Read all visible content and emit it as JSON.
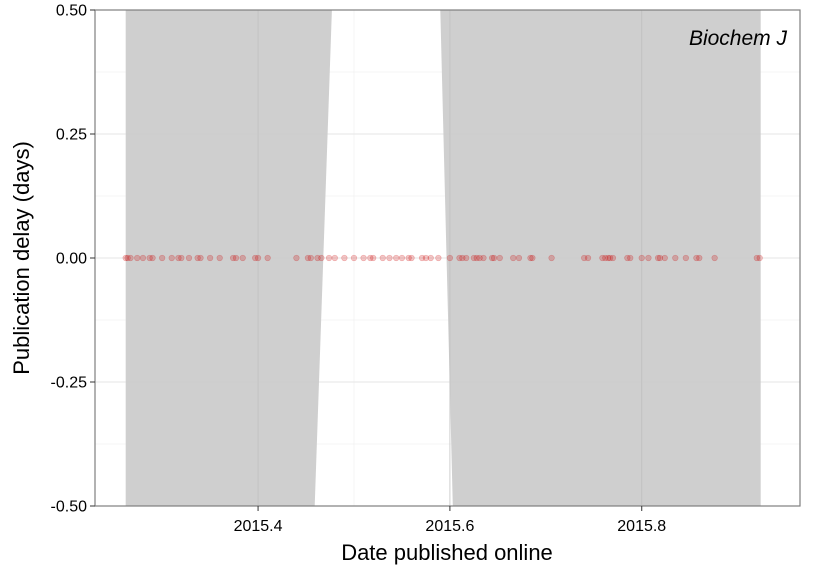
{
  "chart_data": {
    "type": "scatter",
    "title": "",
    "annotation": "Biochem J",
    "xlabel": "Date published online",
    "ylabel": "Publication delay (days)",
    "xlim": [
      2015.23,
      2015.965
    ],
    "ylim": [
      -0.5,
      0.5
    ],
    "x_ticks": [
      {
        "value": 2015.4,
        "label": "2015.4"
      },
      {
        "value": 2015.6,
        "label": "2015.6"
      },
      {
        "value": 2015.8,
        "label": "2015.8"
      }
    ],
    "y_ticks": [
      {
        "value": 0.5,
        "label": "0.50"
      },
      {
        "value": 0.25,
        "label": "0.25"
      },
      {
        "value": 0.0,
        "label": "0.00"
      },
      {
        "value": -0.25,
        "label": "-0.25"
      },
      {
        "value": -0.5,
        "label": "-0.50"
      }
    ],
    "minor_x": [
      2015.3,
      2015.5,
      2015.7,
      2015.9
    ],
    "minor_y": [
      0.375,
      0.125,
      -0.125,
      -0.375
    ],
    "grid": true,
    "confidence_bands": [
      {
        "polygon": [
          [
            2015.262,
            -0.5
          ],
          [
            2015.262,
            0.5
          ],
          [
            2015.477,
            0.5
          ],
          [
            2015.459,
            -0.5
          ]
        ]
      },
      {
        "polygon": [
          [
            2015.59,
            0.5
          ],
          [
            2015.924,
            0.5
          ],
          [
            2015.924,
            -0.5
          ],
          [
            2015.603,
            -0.5
          ]
        ]
      }
    ],
    "point_color": "#cc0000",
    "band_color": "#cccccc",
    "points": [
      {
        "x": 2015.262,
        "y": 0
      },
      {
        "x": 2015.264,
        "y": 0
      },
      {
        "x": 2015.267,
        "y": 0
      },
      {
        "x": 2015.274,
        "y": 0
      },
      {
        "x": 2015.28,
        "y": 0
      },
      {
        "x": 2015.287,
        "y": 0
      },
      {
        "x": 2015.29,
        "y": 0
      },
      {
        "x": 2015.3,
        "y": 0
      },
      {
        "x": 2015.31,
        "y": 0
      },
      {
        "x": 2015.317,
        "y": 0
      },
      {
        "x": 2015.32,
        "y": 0
      },
      {
        "x": 2015.328,
        "y": 0
      },
      {
        "x": 2015.337,
        "y": 0
      },
      {
        "x": 2015.34,
        "y": 0
      },
      {
        "x": 2015.35,
        "y": 0
      },
      {
        "x": 2015.36,
        "y": 0
      },
      {
        "x": 2015.374,
        "y": 0
      },
      {
        "x": 2015.377,
        "y": 0
      },
      {
        "x": 2015.384,
        "y": 0
      },
      {
        "x": 2015.397,
        "y": 0
      },
      {
        "x": 2015.4,
        "y": 0
      },
      {
        "x": 2015.41,
        "y": 0
      },
      {
        "x": 2015.44,
        "y": 0
      },
      {
        "x": 2015.452,
        "y": 0
      },
      {
        "x": 2015.455,
        "y": 0
      },
      {
        "x": 2015.462,
        "y": 0
      },
      {
        "x": 2015.466,
        "y": 0
      },
      {
        "x": 2015.474,
        "y": 0
      },
      {
        "x": 2015.48,
        "y": 0
      },
      {
        "x": 2015.49,
        "y": 0
      },
      {
        "x": 2015.5,
        "y": 0
      },
      {
        "x": 2015.51,
        "y": 0
      },
      {
        "x": 2015.517,
        "y": 0
      },
      {
        "x": 2015.52,
        "y": 0
      },
      {
        "x": 2015.53,
        "y": 0
      },
      {
        "x": 2015.537,
        "y": 0
      },
      {
        "x": 2015.544,
        "y": 0
      },
      {
        "x": 2015.55,
        "y": 0
      },
      {
        "x": 2015.557,
        "y": 0
      },
      {
        "x": 2015.56,
        "y": 0
      },
      {
        "x": 2015.571,
        "y": 0
      },
      {
        "x": 2015.575,
        "y": 0
      },
      {
        "x": 2015.58,
        "y": 0
      },
      {
        "x": 2015.588,
        "y": 0
      },
      {
        "x": 2015.6,
        "y": 0
      },
      {
        "x": 2015.61,
        "y": 0
      },
      {
        "x": 2015.613,
        "y": 0
      },
      {
        "x": 2015.617,
        "y": 0
      },
      {
        "x": 2015.625,
        "y": 0
      },
      {
        "x": 2015.628,
        "y": 0
      },
      {
        "x": 2015.631,
        "y": 0
      },
      {
        "x": 2015.635,
        "y": 0
      },
      {
        "x": 2015.644,
        "y": 0
      },
      {
        "x": 2015.646,
        "y": 0
      },
      {
        "x": 2015.652,
        "y": 0
      },
      {
        "x": 2015.666,
        "y": 0
      },
      {
        "x": 2015.672,
        "y": 0
      },
      {
        "x": 2015.684,
        "y": 0
      },
      {
        "x": 2015.686,
        "y": 0
      },
      {
        "x": 2015.706,
        "y": 0
      },
      {
        "x": 2015.74,
        "y": 0
      },
      {
        "x": 2015.744,
        "y": 0
      },
      {
        "x": 2015.759,
        "y": 0
      },
      {
        "x": 2015.762,
        "y": 0
      },
      {
        "x": 2015.765,
        "y": 0
      },
      {
        "x": 2015.767,
        "y": 0
      },
      {
        "x": 2015.77,
        "y": 0
      },
      {
        "x": 2015.785,
        "y": 0
      },
      {
        "x": 2015.788,
        "y": 0
      },
      {
        "x": 2015.8,
        "y": 0
      },
      {
        "x": 2015.807,
        "y": 0
      },
      {
        "x": 2015.817,
        "y": 0
      },
      {
        "x": 2015.819,
        "y": 0
      },
      {
        "x": 2015.824,
        "y": 0
      },
      {
        "x": 2015.835,
        "y": 0
      },
      {
        "x": 2015.846,
        "y": 0
      },
      {
        "x": 2015.857,
        "y": 0
      },
      {
        "x": 2015.86,
        "y": 0
      },
      {
        "x": 2015.876,
        "y": 0
      },
      {
        "x": 2015.92,
        "y": 0
      },
      {
        "x": 2015.923,
        "y": 0
      }
    ]
  }
}
